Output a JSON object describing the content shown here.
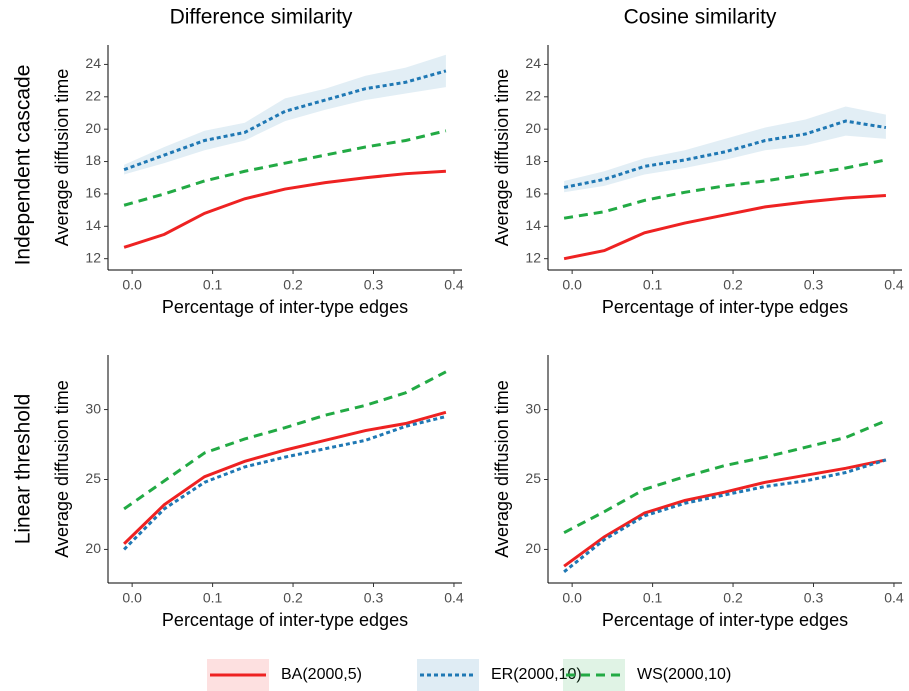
{
  "column_titles": [
    "Difference similarity",
    "Cosine similarity"
  ],
  "row_titles": [
    "Independent cascade",
    "Linear threshold"
  ],
  "chart_data": [
    {
      "type": "line",
      "x_label": "Percentage of inter-type edges",
      "y_label": "Average diffusion time",
      "x": [
        -0.01,
        0.04,
        0.09,
        0.14,
        0.19,
        0.24,
        0.29,
        0.34,
        0.39
      ],
      "xlim": [
        -0.03,
        0.41
      ],
      "xticks": [
        {
          "value": 0,
          "label": "0.0"
        },
        0.1,
        0.2,
        0.3,
        0.4
      ],
      "ylim": [
        11.3,
        25.2
      ],
      "yticks": [
        12,
        14,
        16,
        18,
        20,
        22,
        24
      ],
      "series": [
        {
          "name": "BA(2000,5)",
          "color": "#ee2222",
          "line_style": "solid",
          "values": [
            12.7,
            13.5,
            14.8,
            15.7,
            16.3,
            16.7,
            17.0,
            17.25,
            17.4
          ]
        },
        {
          "name": "ER(2000,10)",
          "color": "#1f78b4",
          "line_style": "dotted",
          "values": [
            17.5,
            18.4,
            19.3,
            19.8,
            21.1,
            21.8,
            22.5,
            22.9,
            23.6
          ],
          "band_lower": [
            17.2,
            17.9,
            18.7,
            19.3,
            20.5,
            21.2,
            21.8,
            22.2,
            22.6
          ],
          "band_upper": [
            17.8,
            18.9,
            19.9,
            20.4,
            21.9,
            22.5,
            23.3,
            23.8,
            24.6
          ]
        },
        {
          "name": "WS(2000,10)",
          "color": "#22aa44",
          "line_style": "dashed",
          "values": [
            15.3,
            16.0,
            16.8,
            17.4,
            17.9,
            18.4,
            18.9,
            19.3,
            19.9
          ]
        }
      ]
    },
    {
      "type": "line",
      "x_label": "Percentage of inter-type edges",
      "y_label": "Average diffusion time",
      "x": [
        -0.01,
        0.04,
        0.09,
        0.14,
        0.19,
        0.24,
        0.29,
        0.34,
        0.39
      ],
      "xlim": [
        -0.03,
        0.41
      ],
      "xticks": [
        {
          "value": 0,
          "label": "0.0"
        },
        0.1,
        0.2,
        0.3,
        0.4
      ],
      "ylim": [
        11.3,
        25.2
      ],
      "yticks": [
        12,
        14,
        16,
        18,
        20,
        22,
        24
      ],
      "series": [
        {
          "color": "#ee2222",
          "line_style": "solid",
          "values": [
            12.0,
            12.5,
            13.6,
            14.2,
            14.7,
            15.2,
            15.5,
            15.75,
            15.9
          ]
        },
        {
          "color": "#1f78b4",
          "line_style": "dotted",
          "values": [
            16.4,
            16.9,
            17.7,
            18.1,
            18.6,
            19.3,
            19.7,
            20.5,
            20.1
          ],
          "band_lower": [
            16.1,
            16.5,
            17.2,
            17.6,
            18.1,
            18.7,
            19.0,
            19.6,
            19.4
          ],
          "band_upper": [
            16.8,
            17.4,
            18.2,
            18.7,
            19.4,
            20.1,
            20.6,
            21.4,
            20.9
          ]
        },
        {
          "color": "#22aa44",
          "line_style": "dashed",
          "values": [
            14.5,
            14.9,
            15.6,
            16.1,
            16.5,
            16.8,
            17.2,
            17.6,
            18.1
          ]
        }
      ]
    },
    {
      "type": "line",
      "x_label": "Percentage of inter-type edges",
      "y_label": "Average diffusion time",
      "x": [
        -0.01,
        0.04,
        0.09,
        0.14,
        0.19,
        0.24,
        0.29,
        0.34,
        0.39
      ],
      "xlim": [
        -0.03,
        0.41
      ],
      "xticks": [
        {
          "value": 0,
          "label": "0.0"
        },
        0.1,
        0.2,
        0.3,
        0.4
      ],
      "ylim": [
        17.6,
        33.9
      ],
      "yticks": [
        20,
        25,
        30
      ],
      "series": [
        {
          "color": "#ee2222",
          "line_style": "solid",
          "values": [
            20.4,
            23.2,
            25.2,
            26.3,
            27.1,
            27.8,
            28.5,
            29.0,
            29.8
          ]
        },
        {
          "color": "#1f78b4",
          "line_style": "dotted",
          "values": [
            20.0,
            22.9,
            24.8,
            25.9,
            26.6,
            27.2,
            27.8,
            28.8,
            29.5
          ]
        },
        {
          "color": "#22aa44",
          "line_style": "dashed",
          "values": [
            22.9,
            24.9,
            26.9,
            27.9,
            28.7,
            29.6,
            30.3,
            31.2,
            32.7
          ]
        }
      ]
    },
    {
      "type": "line",
      "x_label": "Percentage of inter-type edges",
      "y_label": "Average diffusion time",
      "x": [
        -0.01,
        0.04,
        0.09,
        0.14,
        0.19,
        0.24,
        0.29,
        0.34,
        0.39
      ],
      "xlim": [
        -0.03,
        0.41
      ],
      "xticks": [
        {
          "value": 0,
          "label": "0.0"
        },
        0.1,
        0.2,
        0.3,
        0.4
      ],
      "ylim": [
        17.6,
        33.9
      ],
      "yticks": [
        20,
        25,
        30
      ],
      "series": [
        {
          "color": "#ee2222",
          "line_style": "solid",
          "values": [
            18.8,
            20.9,
            22.6,
            23.5,
            24.1,
            24.8,
            25.3,
            25.8,
            26.4
          ]
        },
        {
          "color": "#1f78b4",
          "line_style": "dotted",
          "values": [
            18.4,
            20.7,
            22.4,
            23.3,
            23.9,
            24.5,
            24.9,
            25.5,
            26.4
          ]
        },
        {
          "color": "#22aa44",
          "line_style": "dashed",
          "values": [
            21.2,
            22.7,
            24.3,
            25.2,
            26.0,
            26.6,
            27.3,
            28.0,
            29.2
          ]
        }
      ]
    }
  ]
}
